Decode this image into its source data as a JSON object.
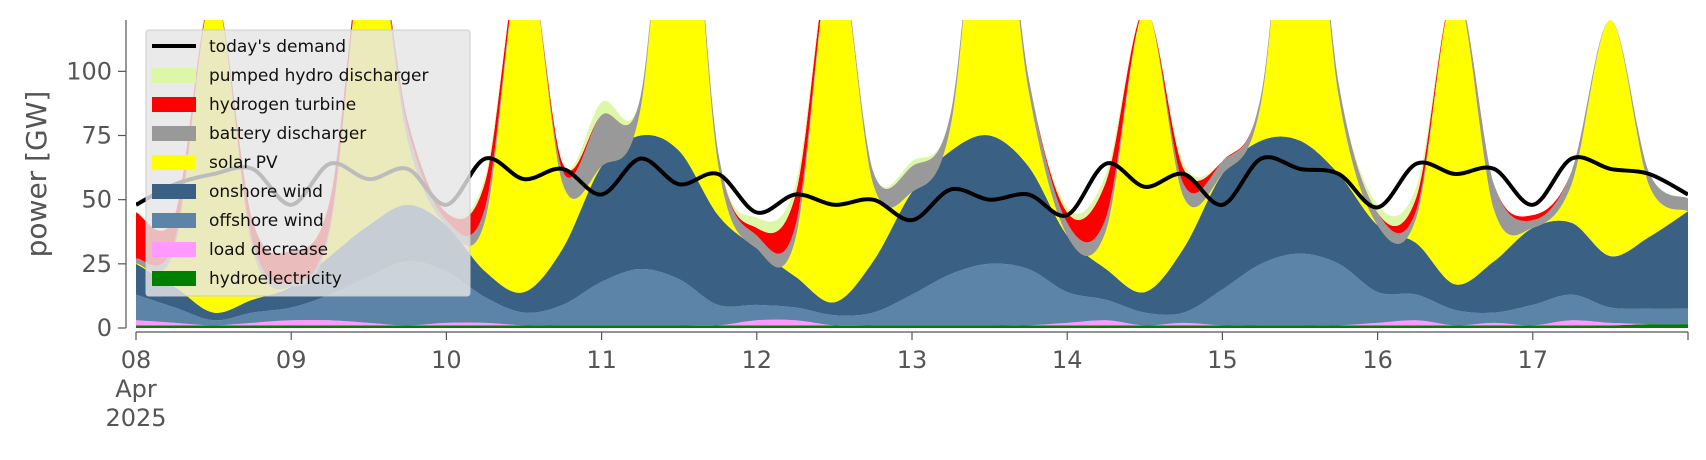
{
  "chart_data": {
    "type": "area",
    "ylabel": "power [GW]",
    "ylim": [
      0,
      120
    ],
    "yticks": [
      0,
      25,
      50,
      75,
      100
    ],
    "x_start": "2025-04-08T00:00",
    "x_end": "2025-04-18T00:00",
    "x_tick_labels": [
      "08\nApr\n2025",
      "09",
      "10",
      "11",
      "12",
      "13",
      "14",
      "15",
      "16",
      "17"
    ],
    "grid": false,
    "legend_position": "top-left",
    "x": [
      "2025-04-08T00:00",
      "2025-04-08T06:00",
      "2025-04-08T12:00",
      "2025-04-08T18:00",
      "2025-04-09T00:00",
      "2025-04-09T06:00",
      "2025-04-09T12:00",
      "2025-04-09T18:00",
      "2025-04-10T00:00",
      "2025-04-10T06:00",
      "2025-04-10T12:00",
      "2025-04-10T18:00",
      "2025-04-11T00:00",
      "2025-04-11T06:00",
      "2025-04-11T12:00",
      "2025-04-11T18:00",
      "2025-04-12T00:00",
      "2025-04-12T06:00",
      "2025-04-12T12:00",
      "2025-04-12T18:00",
      "2025-04-13T00:00",
      "2025-04-13T06:00",
      "2025-04-13T12:00",
      "2025-04-13T18:00",
      "2025-04-14T00:00",
      "2025-04-14T06:00",
      "2025-04-14T12:00",
      "2025-04-14T18:00",
      "2025-04-15T00:00",
      "2025-04-15T06:00",
      "2025-04-15T12:00",
      "2025-04-15T18:00",
      "2025-04-16T00:00",
      "2025-04-16T06:00",
      "2025-04-16T12:00",
      "2025-04-16T18:00",
      "2025-04-17T00:00",
      "2025-04-17T06:00",
      "2025-04-17T12:00",
      "2025-04-17T18:00",
      "2025-04-18T00:00"
    ],
    "series": [
      {
        "name": "hydroelectricity",
        "color": "#008000",
        "values": [
          1,
          1,
          1,
          1,
          1,
          1,
          1,
          1,
          1,
          1,
          1,
          1,
          1,
          1,
          1,
          1,
          1,
          1,
          1,
          1,
          1,
          1,
          1,
          1,
          1,
          1,
          1,
          1,
          1,
          1,
          1,
          1,
          1,
          1,
          1,
          1,
          1,
          1,
          1,
          1.5,
          1.5
        ]
      },
      {
        "name": "load decrease",
        "color": "#ff99ff",
        "values": [
          2,
          1,
          0,
          1,
          2,
          2,
          1,
          0,
          1,
          1,
          0,
          0,
          0,
          0,
          0,
          0,
          2,
          2,
          0,
          0,
          0,
          0,
          0,
          0,
          1,
          2,
          0,
          1,
          0,
          0,
          0,
          0,
          1,
          2,
          0,
          1,
          0,
          2,
          1,
          0,
          0
        ]
      },
      {
        "name": "offshore wind",
        "color": "#5b84a8",
        "values": [
          10,
          6,
          2,
          4,
          5,
          10,
          18,
          25,
          20,
          10,
          5,
          8,
          17,
          22,
          18,
          8,
          6,
          5,
          4,
          5,
          12,
          20,
          24,
          22,
          12,
          8,
          5,
          4,
          14,
          24,
          28,
          24,
          12,
          10,
          6,
          4,
          8,
          10,
          6,
          6,
          6
        ]
      },
      {
        "name": "onshore wind",
        "color": "#3a6083",
        "values": [
          12,
          8,
          3,
          5,
          8,
          15,
          20,
          22,
          18,
          10,
          8,
          22,
          45,
          52,
          50,
          35,
          22,
          12,
          5,
          20,
          40,
          48,
          50,
          40,
          22,
          12,
          8,
          25,
          45,
          48,
          44,
          35,
          26,
          20,
          10,
          20,
          30,
          28,
          20,
          28,
          38
        ]
      },
      {
        "name": "solar PV",
        "color": "#ffff00",
        "values": [
          0,
          15,
          125,
          20,
          0,
          10,
          120,
          25,
          0,
          20,
          135,
          25,
          0,
          10,
          150,
          20,
          0,
          15,
          140,
          30,
          0,
          10,
          130,
          30,
          0,
          15,
          110,
          20,
          0,
          15,
          145,
          30,
          0,
          10,
          115,
          20,
          0,
          15,
          92,
          20,
          0
        ]
      },
      {
        "name": "battery discharger",
        "color": "#999999",
        "values": [
          2,
          3,
          0,
          3,
          2,
          2,
          0,
          5,
          2,
          5,
          0,
          5,
          20,
          5,
          0,
          5,
          5,
          5,
          0,
          5,
          10,
          5,
          0,
          5,
          5,
          5,
          0,
          5,
          5,
          3,
          0,
          5,
          5,
          3,
          0,
          10,
          3,
          5,
          0,
          5,
          5
        ]
      },
      {
        "name": "hydrogen turbine",
        "color": "#ff0000",
        "values": [
          18,
          10,
          0,
          8,
          12,
          10,
          0,
          3,
          3,
          10,
          0,
          3,
          0,
          0,
          0,
          0,
          3,
          12,
          0,
          0,
          0,
          0,
          0,
          0,
          4,
          14,
          0,
          6,
          0,
          0,
          0,
          0,
          0,
          5,
          0,
          0,
          2,
          0,
          0,
          0,
          0
        ]
      },
      {
        "name": "pumped hydro discharger",
        "color": "#ddf7a8",
        "values": [
          0,
          0,
          0,
          0,
          0,
          0,
          0,
          0,
          0,
          2,
          0,
          0,
          5,
          0,
          0,
          0,
          4,
          4,
          0,
          0,
          2,
          0,
          0,
          0,
          2,
          3,
          0,
          2,
          0,
          0,
          0,
          0,
          3,
          4,
          0,
          0,
          0,
          0,
          0,
          0,
          0
        ]
      }
    ],
    "demand": {
      "name": "today's demand",
      "color": "#000000",
      "values": [
        48,
        56,
        60,
        62,
        48,
        64,
        58,
        62,
        48,
        66,
        58,
        62,
        52,
        66,
        56,
        60,
        45,
        52,
        48,
        50,
        42,
        54,
        50,
        52,
        44,
        64,
        55,
        60,
        48,
        66,
        62,
        60,
        47,
        64,
        60,
        62,
        48,
        66,
        62,
        60,
        52
      ]
    }
  }
}
